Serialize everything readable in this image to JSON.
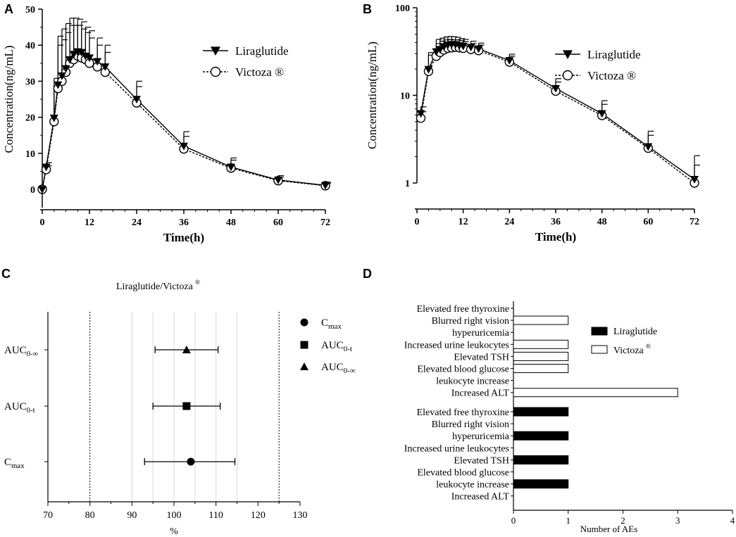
{
  "chart_data": [
    {
      "panel": "A",
      "type": "line",
      "xlabel": "Time(h)",
      "ylabel": "Concentration(ng/mL)",
      "xlim": [
        0,
        72
      ],
      "ylim": [
        0,
        50
      ],
      "yscale": "linear",
      "xticks": [
        "0",
        "12",
        "24",
        "36",
        "48",
        "60",
        "72"
      ],
      "yticks": [
        "0",
        "10",
        "20",
        "30",
        "40",
        "50"
      ],
      "x": [
        0,
        1,
        3,
        4,
        5,
        6,
        7,
        8,
        9,
        10,
        11,
        12,
        14,
        16,
        24,
        36,
        48,
        60,
        72
      ],
      "series": [
        {
          "name": "Liraglutide",
          "marker": "filled-triangle-down",
          "line": "solid",
          "values": [
            0,
            6.2,
            19.8,
            29.0,
            31.5,
            33.5,
            36.0,
            37.5,
            38.2,
            38.0,
            37.0,
            36.5,
            35.5,
            34.0,
            25.0,
            12.0,
            6.2,
            2.6,
            1.1
          ],
          "errors": [
            0,
            1.2,
            11.0,
            13.5,
            13.0,
            12.5,
            11.5,
            10.0,
            9.0,
            8.5,
            8.0,
            7.5,
            6.5,
            6.0,
            5.0,
            4.0,
            2.5,
            1.2,
            0.9
          ]
        },
        {
          "name": "Victoza ®",
          "marker": "open-circle",
          "line": "dashed",
          "values": [
            0,
            5.5,
            18.8,
            28.0,
            30.0,
            32.5,
            35.0,
            36.0,
            37.0,
            36.5,
            36.0,
            35.0,
            34.0,
            32.5,
            24.0,
            11.2,
            5.9,
            2.4,
            1.0
          ],
          "errors": [
            0,
            1.0,
            10.0,
            12.0,
            11.5,
            11.0,
            10.5,
            9.5,
            8.5,
            8.0,
            7.5,
            7.0,
            6.0,
            5.5,
            4.5,
            3.5,
            2.2,
            1.0,
            0.7
          ]
        }
      ]
    },
    {
      "panel": "B",
      "type": "line",
      "xlabel": "Time(h)",
      "ylabel": "Concentration(ng/mL)",
      "xlim": [
        0,
        72
      ],
      "ylim": [
        1,
        100
      ],
      "yscale": "log",
      "xticks": [
        "0",
        "12",
        "24",
        "36",
        "48",
        "60",
        "72"
      ],
      "yticks": [
        "1",
        "10",
        "100"
      ],
      "x": [
        1,
        3,
        5,
        6,
        7,
        8,
        9,
        10,
        11,
        12,
        14,
        16,
        24,
        36,
        48,
        60,
        72
      ],
      "series": [
        {
          "name": "Liraglutide",
          "marker": "filled-triangle-down",
          "line": "solid",
          "values": [
            6.2,
            19.8,
            31.5,
            33.5,
            36.0,
            37.5,
            38.2,
            38.0,
            37.0,
            36.5,
            35.5,
            34.0,
            25.0,
            12.0,
            6.2,
            2.6,
            1.1
          ],
          "errors": [
            1.2,
            11.0,
            12.0,
            11.5,
            10.5,
            9.5,
            8.5,
            8.0,
            7.5,
            7.0,
            6.0,
            5.5,
            4.5,
            3.5,
            2.5,
            1.3,
            0.95
          ]
        },
        {
          "name": "Victoza ®",
          "marker": "open-circle",
          "line": "dashed",
          "values": [
            5.5,
            18.8,
            28.0,
            31.0,
            33.0,
            34.5,
            35.0,
            35.5,
            35.0,
            34.5,
            33.5,
            32.5,
            24.0,
            11.2,
            5.9,
            2.5,
            1.0
          ],
          "errors": [
            1.0,
            10.0,
            11.0,
            10.5,
            10.0,
            9.0,
            8.0,
            7.5,
            7.0,
            6.5,
            5.5,
            5.0,
            4.0,
            3.0,
            2.0,
            1.0,
            0.6
          ]
        }
      ]
    },
    {
      "panel": "C",
      "type": "scatter",
      "title": "Liraglutide/Victoza",
      "title_sup": "®",
      "xlabel": "%",
      "xlim": [
        70,
        130
      ],
      "xticks": [
        "70",
        "80",
        "90",
        "100",
        "110",
        "120",
        "130"
      ],
      "reference_lines": [
        80,
        125
      ],
      "grid_lines": [
        90,
        95,
        100,
        105,
        110,
        115
      ],
      "rows": [
        {
          "label_main": "AUC",
          "label_sub": "0-∞",
          "marker": "triangle",
          "point": 103.0,
          "ci": [
            95.5,
            110.5
          ]
        },
        {
          "label_main": "AUC",
          "label_sub": "0-t",
          "marker": "square",
          "point": 103.0,
          "ci": [
            95.0,
            111.0
          ]
        },
        {
          "label_main": "C",
          "label_sub": "max",
          "marker": "circle",
          "point": 104.0,
          "ci": [
            93.0,
            114.5
          ]
        }
      ],
      "legend": [
        {
          "marker": "circle",
          "main": "C",
          "sub": "max"
        },
        {
          "marker": "square",
          "main": "AUC",
          "sub": "0-t"
        },
        {
          "marker": "triangle",
          "main": "AUC",
          "sub": "0-∞"
        }
      ]
    },
    {
      "panel": "D",
      "type": "bar",
      "orientation": "horizontal",
      "xlabel": "Number of AEs",
      "xlim": [
        0,
        4
      ],
      "xticks": [
        "0",
        "1",
        "2",
        "3",
        "4"
      ],
      "legend": [
        {
          "name": "Liraglutide",
          "fill": "#000000"
        },
        {
          "name": "Victoza",
          "sup": "®",
          "fill": "#ffffff"
        }
      ],
      "groups": [
        {
          "series": "Victoza",
          "fill": "#ffffff",
          "categories": [
            "Elevated free thyroxine",
            "Blurred right vision",
            "hyperuricemia",
            "Increased urine leukocytes",
            "Elevated TSH",
            "Elevated blood glucose",
            "leukocyte increase",
            "Increased ALT"
          ],
          "values": [
            0,
            1,
            0,
            1,
            1,
            1,
            0,
            3
          ]
        },
        {
          "series": "Liraglutide",
          "fill": "#000000",
          "categories": [
            "Elevated free thyroxine",
            "Blurred right vision",
            "hyperuricemia",
            "Increased urine leukocytes",
            "Elevated TSH",
            "Elevated blood glucose",
            "leukocyte increase",
            "Increased ALT"
          ],
          "values": [
            1,
            0,
            1,
            0,
            1,
            0,
            1,
            0
          ]
        }
      ]
    }
  ],
  "panel_labels": [
    "A",
    "B",
    "C",
    "D"
  ]
}
